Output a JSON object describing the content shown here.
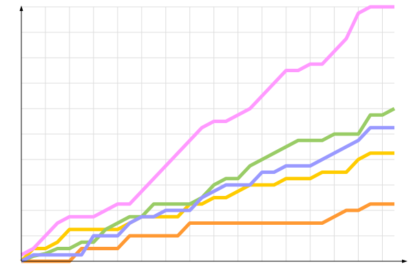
{
  "chart_data": {
    "type": "line",
    "title": "",
    "xlabel": "",
    "ylabel": "",
    "xlim": [
      0,
      31
    ],
    "ylim": [
      0,
      100
    ],
    "grid": true,
    "x_grid_step": 2,
    "y_grid_step": 10,
    "x": [
      0,
      1,
      2,
      3,
      4,
      5,
      6,
      7,
      8,
      9,
      10,
      11,
      12,
      13,
      14,
      15,
      16,
      17,
      18,
      19,
      20,
      21,
      22,
      23,
      24,
      25,
      26,
      27,
      28,
      29,
      30,
      31
    ],
    "series": [
      {
        "color": "#ff9933",
        "values": [
          0,
          0,
          0,
          0,
          0,
          5,
          5,
          5,
          5,
          10,
          10,
          10,
          10,
          10,
          15,
          15,
          15,
          15,
          15,
          15,
          15,
          15,
          15,
          15,
          15,
          15,
          17.5,
          20,
          20,
          22.5,
          22.5,
          22.5
        ]
      },
      {
        "color": "#ffcc00",
        "values": [
          0,
          5,
          5,
          7.5,
          12.5,
          12.5,
          12.5,
          12.5,
          12.5,
          15,
          17.5,
          17.5,
          17.5,
          17.5,
          22.5,
          22.5,
          25,
          25,
          27.5,
          30,
          30,
          30,
          32.5,
          32.5,
          32.5,
          35,
          35,
          35,
          40,
          42.5,
          42.5,
          42.5
        ]
      },
      {
        "color": "#99cc66",
        "values": [
          0,
          2,
          3,
          5,
          5,
          7.5,
          7.5,
          12.5,
          15,
          17.5,
          17.5,
          22.5,
          22.5,
          22.5,
          22.5,
          25,
          30,
          32.5,
          32.5,
          37.5,
          40,
          42.5,
          45,
          47.5,
          47.5,
          47.5,
          50,
          50,
          50,
          57.5,
          57.5,
          60
        ]
      },
      {
        "color": "#9999ff",
        "values": [
          0,
          2.5,
          2.5,
          2.5,
          2.5,
          2.5,
          10,
          10,
          10,
          15,
          17.5,
          17.5,
          20,
          20,
          20,
          25,
          27.5,
          30,
          30,
          30,
          35,
          35,
          37.5,
          37.5,
          37.5,
          40,
          42.5,
          45,
          47.5,
          52.5,
          52.5,
          52.5
        ]
      },
      {
        "color": "#ff99ff",
        "values": [
          2.5,
          5,
          10,
          15,
          17.5,
          17.5,
          17.5,
          20,
          22.5,
          22.5,
          27.5,
          32.5,
          37.5,
          42.5,
          47.5,
          52.5,
          55,
          55,
          57.5,
          60,
          65,
          70,
          75,
          75,
          77.5,
          77.5,
          82.5,
          87.5,
          97.5,
          100,
          100,
          100
        ]
      }
    ]
  }
}
